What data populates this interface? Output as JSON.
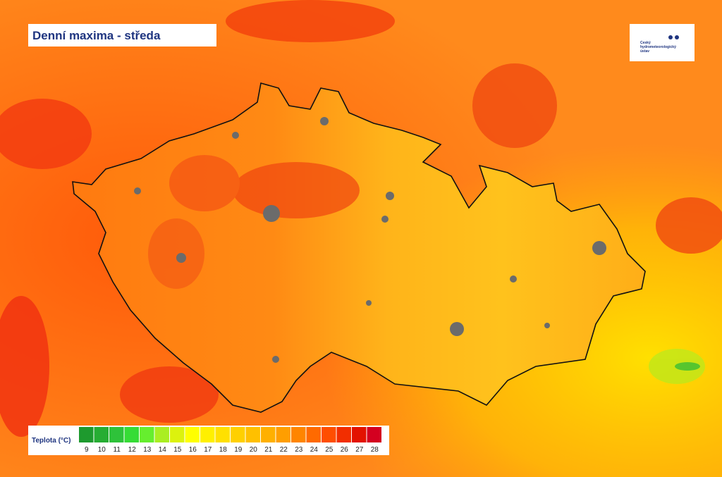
{
  "header": {
    "title": "Denní maxima - středa"
  },
  "logo": {
    "text": "Český hydrometeorologický ústav"
  },
  "legend": {
    "title": "Teplota (°C)",
    "items": [
      {
        "label": "9",
        "color": "#1e9a2e"
      },
      {
        "label": "10",
        "color": "#26ad33"
      },
      {
        "label": "11",
        "color": "#2ec23a"
      },
      {
        "label": "12",
        "color": "#36dc36"
      },
      {
        "label": "13",
        "color": "#66ee2e"
      },
      {
        "label": "14",
        "color": "#aaee22"
      },
      {
        "label": "15",
        "color": "#dcf20e"
      },
      {
        "label": "16",
        "color": "#ffff00"
      },
      {
        "label": "17",
        "color": "#fff000"
      },
      {
        "label": "18",
        "color": "#ffe000"
      },
      {
        "label": "19",
        "color": "#ffd000"
      },
      {
        "label": "20",
        "color": "#ffc000"
      },
      {
        "label": "21",
        "color": "#ffb000"
      },
      {
        "label": "22",
        "color": "#ff9e00"
      },
      {
        "label": "23",
        "color": "#ff8500"
      },
      {
        "label": "24",
        "color": "#ff6a00"
      },
      {
        "label": "25",
        "color": "#ff4e00"
      },
      {
        "label": "26",
        "color": "#f22e00"
      },
      {
        "label": "27",
        "color": "#e31200"
      },
      {
        "label": "28",
        "color": "#d40020"
      }
    ]
  }
}
